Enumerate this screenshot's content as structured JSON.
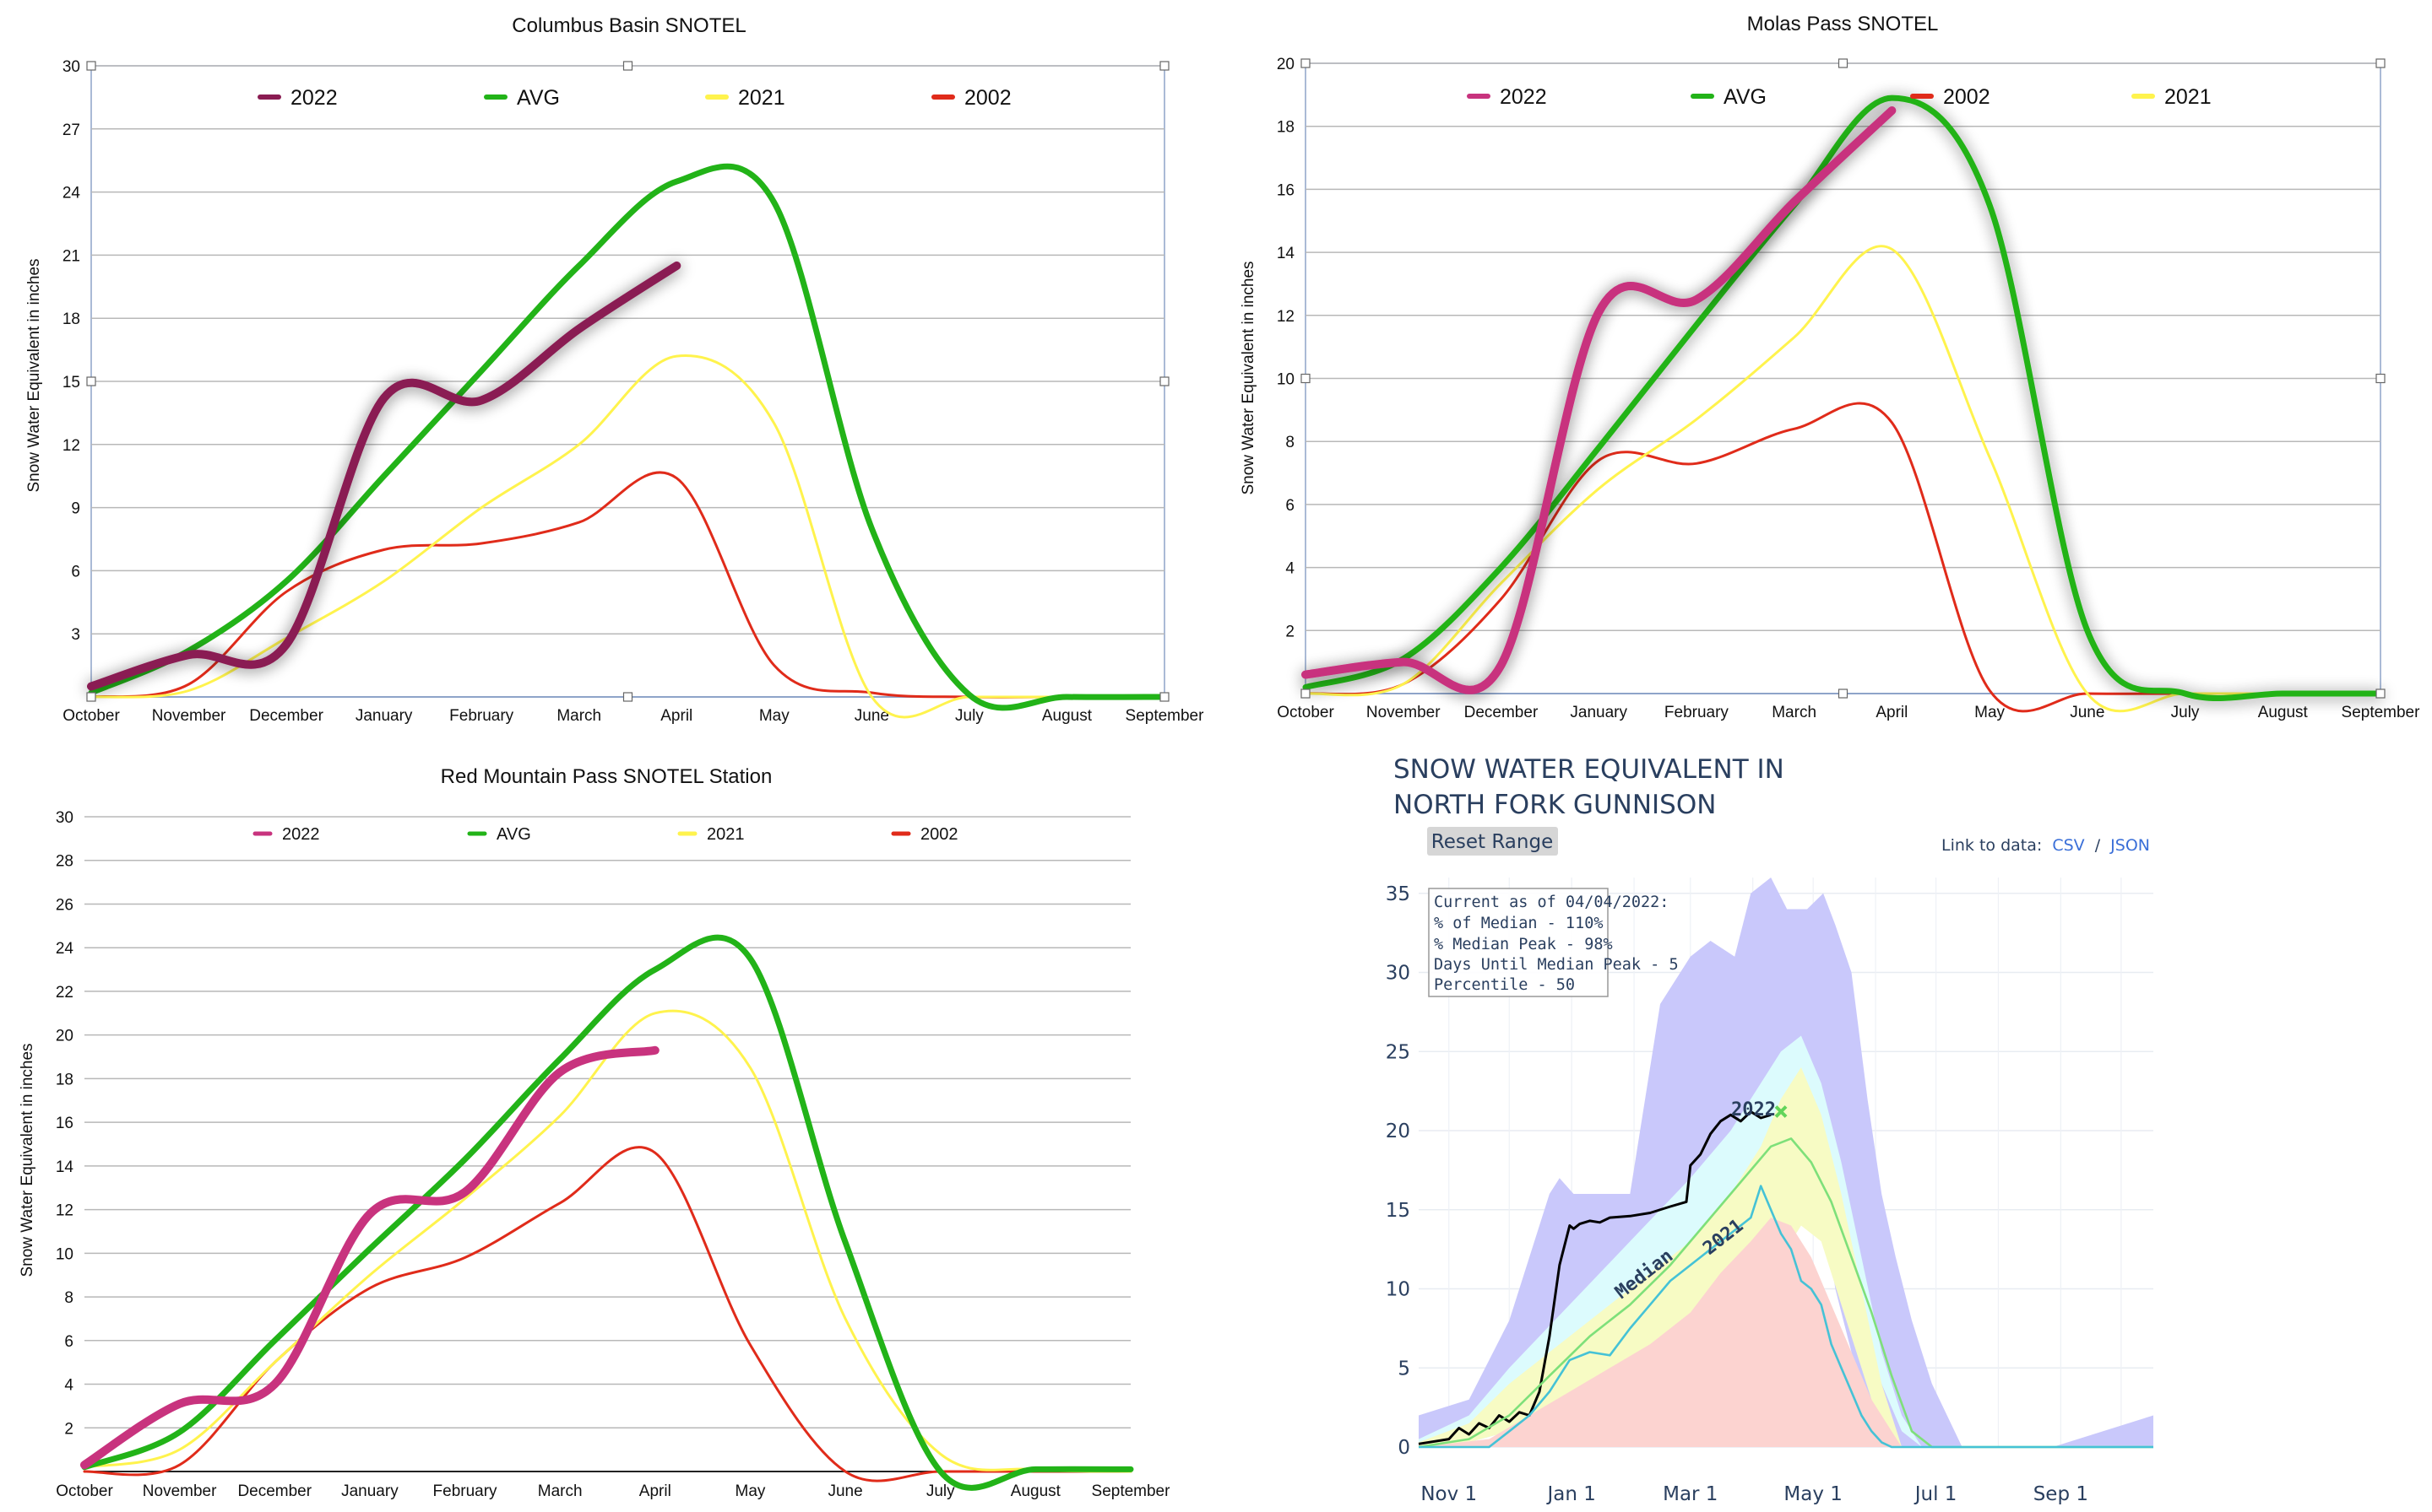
{
  "colors": {
    "s2022": "#c8337e",
    "s2022dark": "#8a1c52",
    "avg": "#22b318",
    "s2021": "#fff34d",
    "s2002": "#e02b1a",
    "grid": "#b8b8b8",
    "plotly_text": "#2a3f5f",
    "link": "#3a6fd8"
  },
  "chart_data": [
    {
      "type": "line",
      "title": "Columbus Basin SNOTEL",
      "ylabel": "Snow Water Equivalent in inches",
      "xlabel": "",
      "ylim": [
        0,
        30
      ],
      "yticks": [
        "3",
        "6",
        "9",
        "12",
        "15",
        "18",
        "21",
        "24",
        "27",
        "30"
      ],
      "categories": [
        "October",
        "November",
        "December",
        "January",
        "February",
        "March",
        "April",
        "May",
        "June",
        "July",
        "August",
        "September"
      ],
      "legend_placement": "top",
      "grid": true,
      "series": [
        {
          "name": "2022",
          "values": [
            0.5,
            2.0,
            2.5,
            14.2,
            14.1,
            17.5,
            20.5,
            null,
            null,
            null,
            null,
            null
          ]
        },
        {
          "name": "AVG",
          "values": [
            0.2,
            2.2,
            5.5,
            10.5,
            15.5,
            20.5,
            24.5,
            23.5,
            8.0,
            0.1,
            0.0,
            0.0
          ]
        },
        {
          "name": "2021",
          "values": [
            0.0,
            0.3,
            2.8,
            5.5,
            9.0,
            12.0,
            16.2,
            13.0,
            0.0,
            0.0,
            0.0,
            0.0
          ]
        },
        {
          "name": "2002",
          "values": [
            0.0,
            0.6,
            5.0,
            7.0,
            7.3,
            8.3,
            10.4,
            1.5,
            0.2,
            0.0,
            0.0,
            0.0
          ]
        }
      ]
    },
    {
      "type": "line",
      "title": "Molas Pass SNOTEL",
      "ylabel": "Snow Water Equivalent in inches",
      "xlabel": "",
      "ylim": [
        0,
        20
      ],
      "yticks": [
        "2",
        "4",
        "6",
        "8",
        "10",
        "12",
        "14",
        "16",
        "18",
        "20"
      ],
      "categories": [
        "October",
        "November",
        "December",
        "January",
        "February",
        "March",
        "April",
        "May",
        "June",
        "July",
        "August",
        "September"
      ],
      "legend_placement": "top",
      "grid": true,
      "series": [
        {
          "name": "2022",
          "values": [
            0.6,
            1.0,
            0.9,
            12.1,
            12.5,
            15.6,
            18.5,
            null,
            null,
            null,
            null,
            null
          ]
        },
        {
          "name": "AVG",
          "values": [
            0.2,
            1.1,
            4.0,
            7.8,
            11.7,
            15.5,
            18.9,
            15.5,
            2.0,
            0.0,
            0.0,
            0.0
          ]
        },
        {
          "name": "2002",
          "values": [
            0.0,
            0.3,
            3.0,
            7.4,
            7.3,
            8.4,
            8.6,
            0.1,
            0.0,
            0.0,
            0.0,
            0.0
          ]
        },
        {
          "name": "2021",
          "values": [
            0.0,
            0.3,
            3.5,
            6.5,
            8.7,
            11.3,
            14.1,
            7.5,
            0.0,
            0.0,
            0.0,
            0.0
          ]
        }
      ]
    },
    {
      "type": "line",
      "title": "Red Mountain Pass SNOTEL Station",
      "ylabel": "Snow Water Equivalent in inches",
      "xlabel": "",
      "ylim": [
        0,
        30
      ],
      "yticks": [
        "2",
        "4",
        "6",
        "8",
        "10",
        "12",
        "14",
        "16",
        "18",
        "20",
        "22",
        "24",
        "26",
        "28",
        "30"
      ],
      "categories": [
        "October",
        "November",
        "December",
        "January",
        "February",
        "March",
        "April",
        "May",
        "June",
        "July",
        "August",
        "September"
      ],
      "legend_placement": "top",
      "grid": true,
      "series": [
        {
          "name": "2022",
          "values": [
            0.3,
            3.1,
            4.0,
            11.8,
            12.8,
            18.3,
            19.3,
            null,
            null,
            null,
            null,
            null
          ]
        },
        {
          "name": "AVG",
          "values": [
            0.2,
            1.8,
            6.0,
            10.2,
            14.3,
            18.9,
            23.0,
            23.5,
            10.5,
            0.0,
            0.1,
            0.1
          ]
        },
        {
          "name": "2021",
          "values": [
            0.2,
            1.0,
            5.0,
            9.0,
            12.5,
            16.3,
            21.0,
            18.5,
            7.0,
            0.8,
            0.1,
            0.0
          ]
        },
        {
          "name": "2002",
          "values": [
            0.0,
            0.3,
            5.0,
            8.4,
            9.8,
            12.3,
            14.6,
            5.8,
            0.0,
            0.0,
            0.0,
            0.0
          ]
        }
      ]
    },
    {
      "type": "area",
      "title_lines": [
        "SNOW WATER EQUIVALENT IN",
        "NORTH FORK GUNNISON"
      ],
      "xlabel": "",
      "ylabel": "",
      "ylim": [
        0,
        36
      ],
      "yticks": [
        "0",
        "5",
        "10",
        "15",
        "20",
        "25",
        "30",
        "35"
      ],
      "xticks": [
        "Nov 1",
        "Jan 1",
        "Mar 1",
        "May 1",
        "Jul 1",
        "Sep 1"
      ],
      "xrange_days": [
        -15,
        350
      ],
      "grid": true,
      "reset_button": "Reset Range",
      "link_label": "Link to data:",
      "link_csv": "CSV",
      "link_sep": "/",
      "link_json": "JSON",
      "info_lines": [
        "Current as of 04/04/2022:",
        "% of Median - 110%",
        "% Median Peak - 98%",
        "Days Until Median Peak - 5",
        "Percentile - 50"
      ],
      "labels": {
        "s2022": "2022",
        "median": "Median",
        "s2021": "2021"
      },
      "bands": [
        {
          "name": "max-90",
          "color": "#c9c8fb",
          "x": [
            -15,
            10,
            30,
            50,
            55,
            62,
            75,
            90,
            105,
            120,
            130,
            142,
            150,
            160,
            168,
            178,
            186,
            192,
            200,
            208,
            215,
            222,
            230,
            240,
            255,
            270,
            300,
            350
          ],
          "upper": [
            2,
            3,
            8,
            16,
            17,
            16,
            16,
            16,
            28,
            31,
            32,
            31,
            35,
            36,
            34,
            34,
            35,
            33,
            30,
            22,
            16,
            12,
            8,
            4,
            0,
            0,
            0,
            2
          ],
          "lower": [
            0,
            0.3,
            1,
            3,
            5,
            7,
            9,
            11,
            12,
            14,
            16,
            18,
            19,
            20,
            20,
            19,
            15,
            10,
            6,
            2,
            0,
            0,
            0,
            0,
            0,
            0,
            0,
            0
          ]
        },
        {
          "name": "90-70",
          "color": "#dcfbfd",
          "x": [
            -15,
            10,
            30,
            60,
            90,
            120,
            140,
            155,
            165,
            175,
            185,
            195,
            205,
            215,
            225,
            235,
            245
          ],
          "upper": [
            0.5,
            2,
            5,
            9,
            13,
            17,
            20,
            23,
            25,
            26,
            23,
            18,
            12,
            6,
            2,
            0,
            0
          ],
          "lower": [
            0,
            0.3,
            1,
            3,
            5,
            7,
            9,
            11,
            12,
            14,
            15,
            12,
            8,
            4,
            1,
            0,
            0
          ]
        },
        {
          "name": "70-30",
          "color": "#f7fbc4",
          "x": [
            -15,
            10,
            30,
            60,
            90,
            120,
            140,
            155,
            165,
            175,
            185,
            195,
            205,
            215,
            225
          ],
          "upper": [
            0.3,
            1.5,
            4,
            7,
            10,
            13,
            16,
            19,
            22,
            24,
            21,
            16,
            10,
            4,
            0
          ],
          "lower": [
            0,
            0.3,
            1,
            3,
            5,
            7,
            9,
            11,
            12,
            14,
            13,
            9,
            5,
            1,
            0
          ]
        },
        {
          "name": "30-min",
          "color": "#fcd3d0",
          "x": [
            -15,
            20,
            40,
            60,
            80,
            100,
            120,
            135,
            150,
            160,
            170,
            180,
            190,
            200,
            210,
            220,
            225
          ],
          "upper": [
            0,
            0.5,
            2,
            3.5,
            5,
            6.5,
            8.5,
            11,
            13,
            14.5,
            14,
            12,
            9,
            6,
            3,
            1,
            0
          ],
          "lower": [
            0,
            0,
            0,
            0,
            0,
            0,
            0,
            0,
            0,
            0,
            0,
            0,
            0,
            0,
            0,
            0,
            0
          ]
        }
      ],
      "series": [
        {
          "name": "2022",
          "color": "#000000",
          "x": [
            -15,
            0,
            5,
            10,
            15,
            20,
            25,
            30,
            35,
            40,
            45,
            50,
            55,
            60,
            62,
            65,
            70,
            75,
            80,
            90,
            100,
            110,
            118,
            120,
            125,
            130,
            135,
            140,
            145,
            150,
            155,
            160
          ],
          "y": [
            0.2,
            0.5,
            1.2,
            0.8,
            1.5,
            1.2,
            2.0,
            1.6,
            2.2,
            2.0,
            3.5,
            7.0,
            11.5,
            14.0,
            13.8,
            14.1,
            14.3,
            14.2,
            14.5,
            14.6,
            14.8,
            15.2,
            15.5,
            17.8,
            18.5,
            19.8,
            20.6,
            21.0,
            20.6,
            21.2,
            20.8,
            21.0
          ]
        },
        {
          "name": "Median",
          "color": "#7ee07a",
          "x": [
            -15,
            10,
            30,
            50,
            70,
            90,
            110,
            130,
            150,
            160,
            170,
            180,
            190,
            200,
            210,
            220,
            230,
            240,
            350
          ],
          "y": [
            0,
            0.5,
            2.0,
            4.5,
            7.0,
            9.0,
            11.5,
            14.5,
            17.5,
            19.0,
            19.5,
            18.0,
            15.5,
            12.0,
            8.5,
            4.5,
            1.0,
            0,
            0
          ]
        },
        {
          "name": "2021",
          "color": "#45c2d6",
          "x": [
            -15,
            20,
            30,
            40,
            50,
            60,
            70,
            80,
            90,
            100,
            110,
            120,
            130,
            140,
            145,
            150,
            155,
            160,
            165,
            170,
            175,
            180,
            185,
            190,
            195,
            200,
            205,
            210,
            215,
            220,
            230,
            350
          ],
          "y": [
            0,
            0,
            1.0,
            2.0,
            3.5,
            5.5,
            6.0,
            5.8,
            7.5,
            9.0,
            10.5,
            11.5,
            12.5,
            13.5,
            14.0,
            14.5,
            16.5,
            15.0,
            13.5,
            12.5,
            10.5,
            10.0,
            9.0,
            6.5,
            5.0,
            3.5,
            2.0,
            1.0,
            0.3,
            0,
            0,
            0
          ]
        }
      ],
      "marker_2022_median_peak": {
        "x": 165,
        "y": 21.2
      }
    }
  ]
}
